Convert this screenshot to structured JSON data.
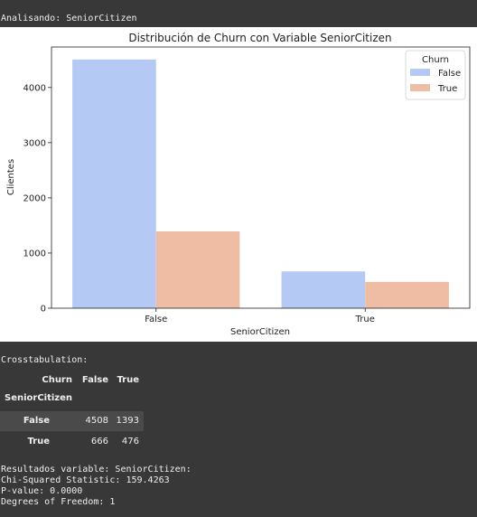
{
  "output": {
    "analyzing_line": "Analisando: SeniorCitizen",
    "crosstab_heading": "Crosstabulation:",
    "results_lines": [
      "Resultados variable: SeniorCitizen:",
      "Chi-Squared Statistic: 159.4263",
      "P-value: 0.0000",
      "Degrees of Freedom: 1"
    ]
  },
  "crosstab": {
    "columns_label": "Churn",
    "columns": [
      "False",
      "True"
    ],
    "index_label": "SeniorCitizen",
    "rows": [
      {
        "label": "False",
        "values": [
          "4508",
          "1393"
        ]
      },
      {
        "label": "True",
        "values": [
          "666",
          "476"
        ]
      }
    ],
    "row_highlight_color": "#4a4a4a"
  },
  "chart_data": {
    "type": "bar",
    "title": "Distribución de Churn con Variable SeniorCitizen",
    "xlabel": "SeniorCitizen",
    "ylabel": "Clientes",
    "categories": [
      "False",
      "True"
    ],
    "ylim": [
      0,
      4734
    ],
    "yticks": [
      0,
      1000,
      2000,
      3000,
      4000
    ],
    "legend": {
      "title": "Churn",
      "placement": "upper-right"
    },
    "grid": false,
    "series": [
      {
        "name": "False",
        "values": [
          4508,
          666
        ],
        "color": "#b5c9f5"
      },
      {
        "name": "True",
        "values": [
          1393,
          476
        ],
        "color": "#efbca4"
      }
    ]
  }
}
